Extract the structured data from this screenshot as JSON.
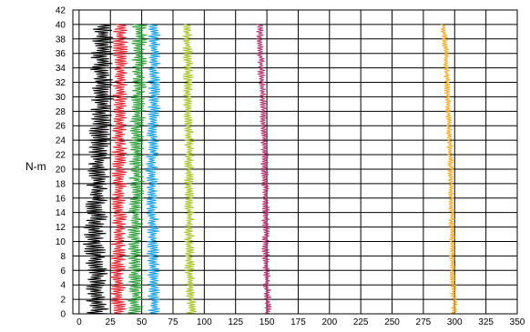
{
  "chart_data": {
    "type": "line",
    "title": "",
    "xlabel": "",
    "ylabel": "N-m",
    "xlim": [
      -5,
      350
    ],
    "ylim": [
      0,
      42
    ],
    "xticks": [
      0,
      25,
      50,
      75,
      100,
      125,
      150,
      175,
      200,
      225,
      250,
      275,
      300,
      325,
      350
    ],
    "yticks": [
      0,
      2,
      4,
      6,
      8,
      10,
      12,
      14,
      16,
      18,
      20,
      22,
      24,
      26,
      28,
      30,
      32,
      34,
      36,
      38,
      40,
      42
    ],
    "grid": true,
    "legend": "none",
    "series": [
      {
        "color": "#000000",
        "y_range": [
          0,
          40
        ],
        "amplitude": 9,
        "points": [
          [
            15,
            0
          ],
          [
            14,
            4
          ],
          [
            13,
            8
          ],
          [
            12,
            10
          ],
          [
            14,
            14
          ],
          [
            15,
            18
          ],
          [
            16,
            22
          ],
          [
            17,
            26
          ],
          [
            19,
            30
          ],
          [
            18,
            34
          ],
          [
            20,
            40
          ]
        ]
      },
      {
        "color": "#e0202c",
        "y_range": [
          0,
          40
        ],
        "amplitude": 6,
        "points": [
          [
            32,
            0
          ],
          [
            31,
            4
          ],
          [
            31,
            8
          ],
          [
            32,
            12
          ],
          [
            32,
            16
          ],
          [
            32,
            20
          ],
          [
            32,
            24
          ],
          [
            33,
            28
          ],
          [
            33,
            32
          ],
          [
            33,
            36
          ],
          [
            33,
            40
          ]
        ]
      },
      {
        "color": "#2e9e3a",
        "y_range": [
          0,
          40
        ],
        "amplitude": 6,
        "points": [
          [
            45,
            0
          ],
          [
            45,
            4
          ],
          [
            44,
            8
          ],
          [
            45,
            12
          ],
          [
            46,
            16
          ],
          [
            46,
            20
          ],
          [
            46,
            24
          ],
          [
            47,
            28
          ],
          [
            48,
            32
          ],
          [
            48,
            36
          ],
          [
            48,
            40
          ]
        ]
      },
      {
        "color": "#1aa0e0",
        "y_range": [
          0,
          40
        ],
        "amplitude": 5,
        "points": [
          [
            60,
            0
          ],
          [
            60,
            4
          ],
          [
            59,
            8
          ],
          [
            59,
            12
          ],
          [
            58,
            16
          ],
          [
            58,
            20
          ],
          [
            59,
            24
          ],
          [
            60,
            28
          ],
          [
            60,
            32
          ],
          [
            60,
            36
          ],
          [
            60,
            40
          ]
        ]
      },
      {
        "color": "#a8c42a",
        "y_range": [
          0,
          40
        ],
        "amplitude": 4,
        "points": [
          [
            90,
            0
          ],
          [
            89,
            4
          ],
          [
            88,
            8
          ],
          [
            88,
            12
          ],
          [
            88,
            16
          ],
          [
            88,
            20
          ],
          [
            88,
            24
          ],
          [
            87,
            28
          ],
          [
            87,
            32
          ],
          [
            87,
            36
          ],
          [
            86,
            40
          ]
        ]
      },
      {
        "color": "#b0306e",
        "y_range": [
          0,
          40
        ],
        "amplitude": 3,
        "points": [
          [
            151,
            0
          ],
          [
            150,
            4
          ],
          [
            149,
            8
          ],
          [
            149,
            12
          ],
          [
            149,
            16
          ],
          [
            148,
            20
          ],
          [
            148,
            24
          ],
          [
            147,
            28
          ],
          [
            146,
            32
          ],
          [
            145,
            36
          ],
          [
            144,
            40
          ]
        ]
      },
      {
        "color": "#f0a820",
        "y_range": [
          0,
          40
        ],
        "amplitude": 2.5,
        "points": [
          [
            300,
            0
          ],
          [
            299,
            4
          ],
          [
            298,
            8
          ],
          [
            298,
            12
          ],
          [
            297,
            16
          ],
          [
            297,
            20
          ],
          [
            296,
            24
          ],
          [
            295,
            28
          ],
          [
            294,
            32
          ],
          [
            293,
            36
          ],
          [
            291,
            40
          ]
        ]
      }
    ]
  }
}
